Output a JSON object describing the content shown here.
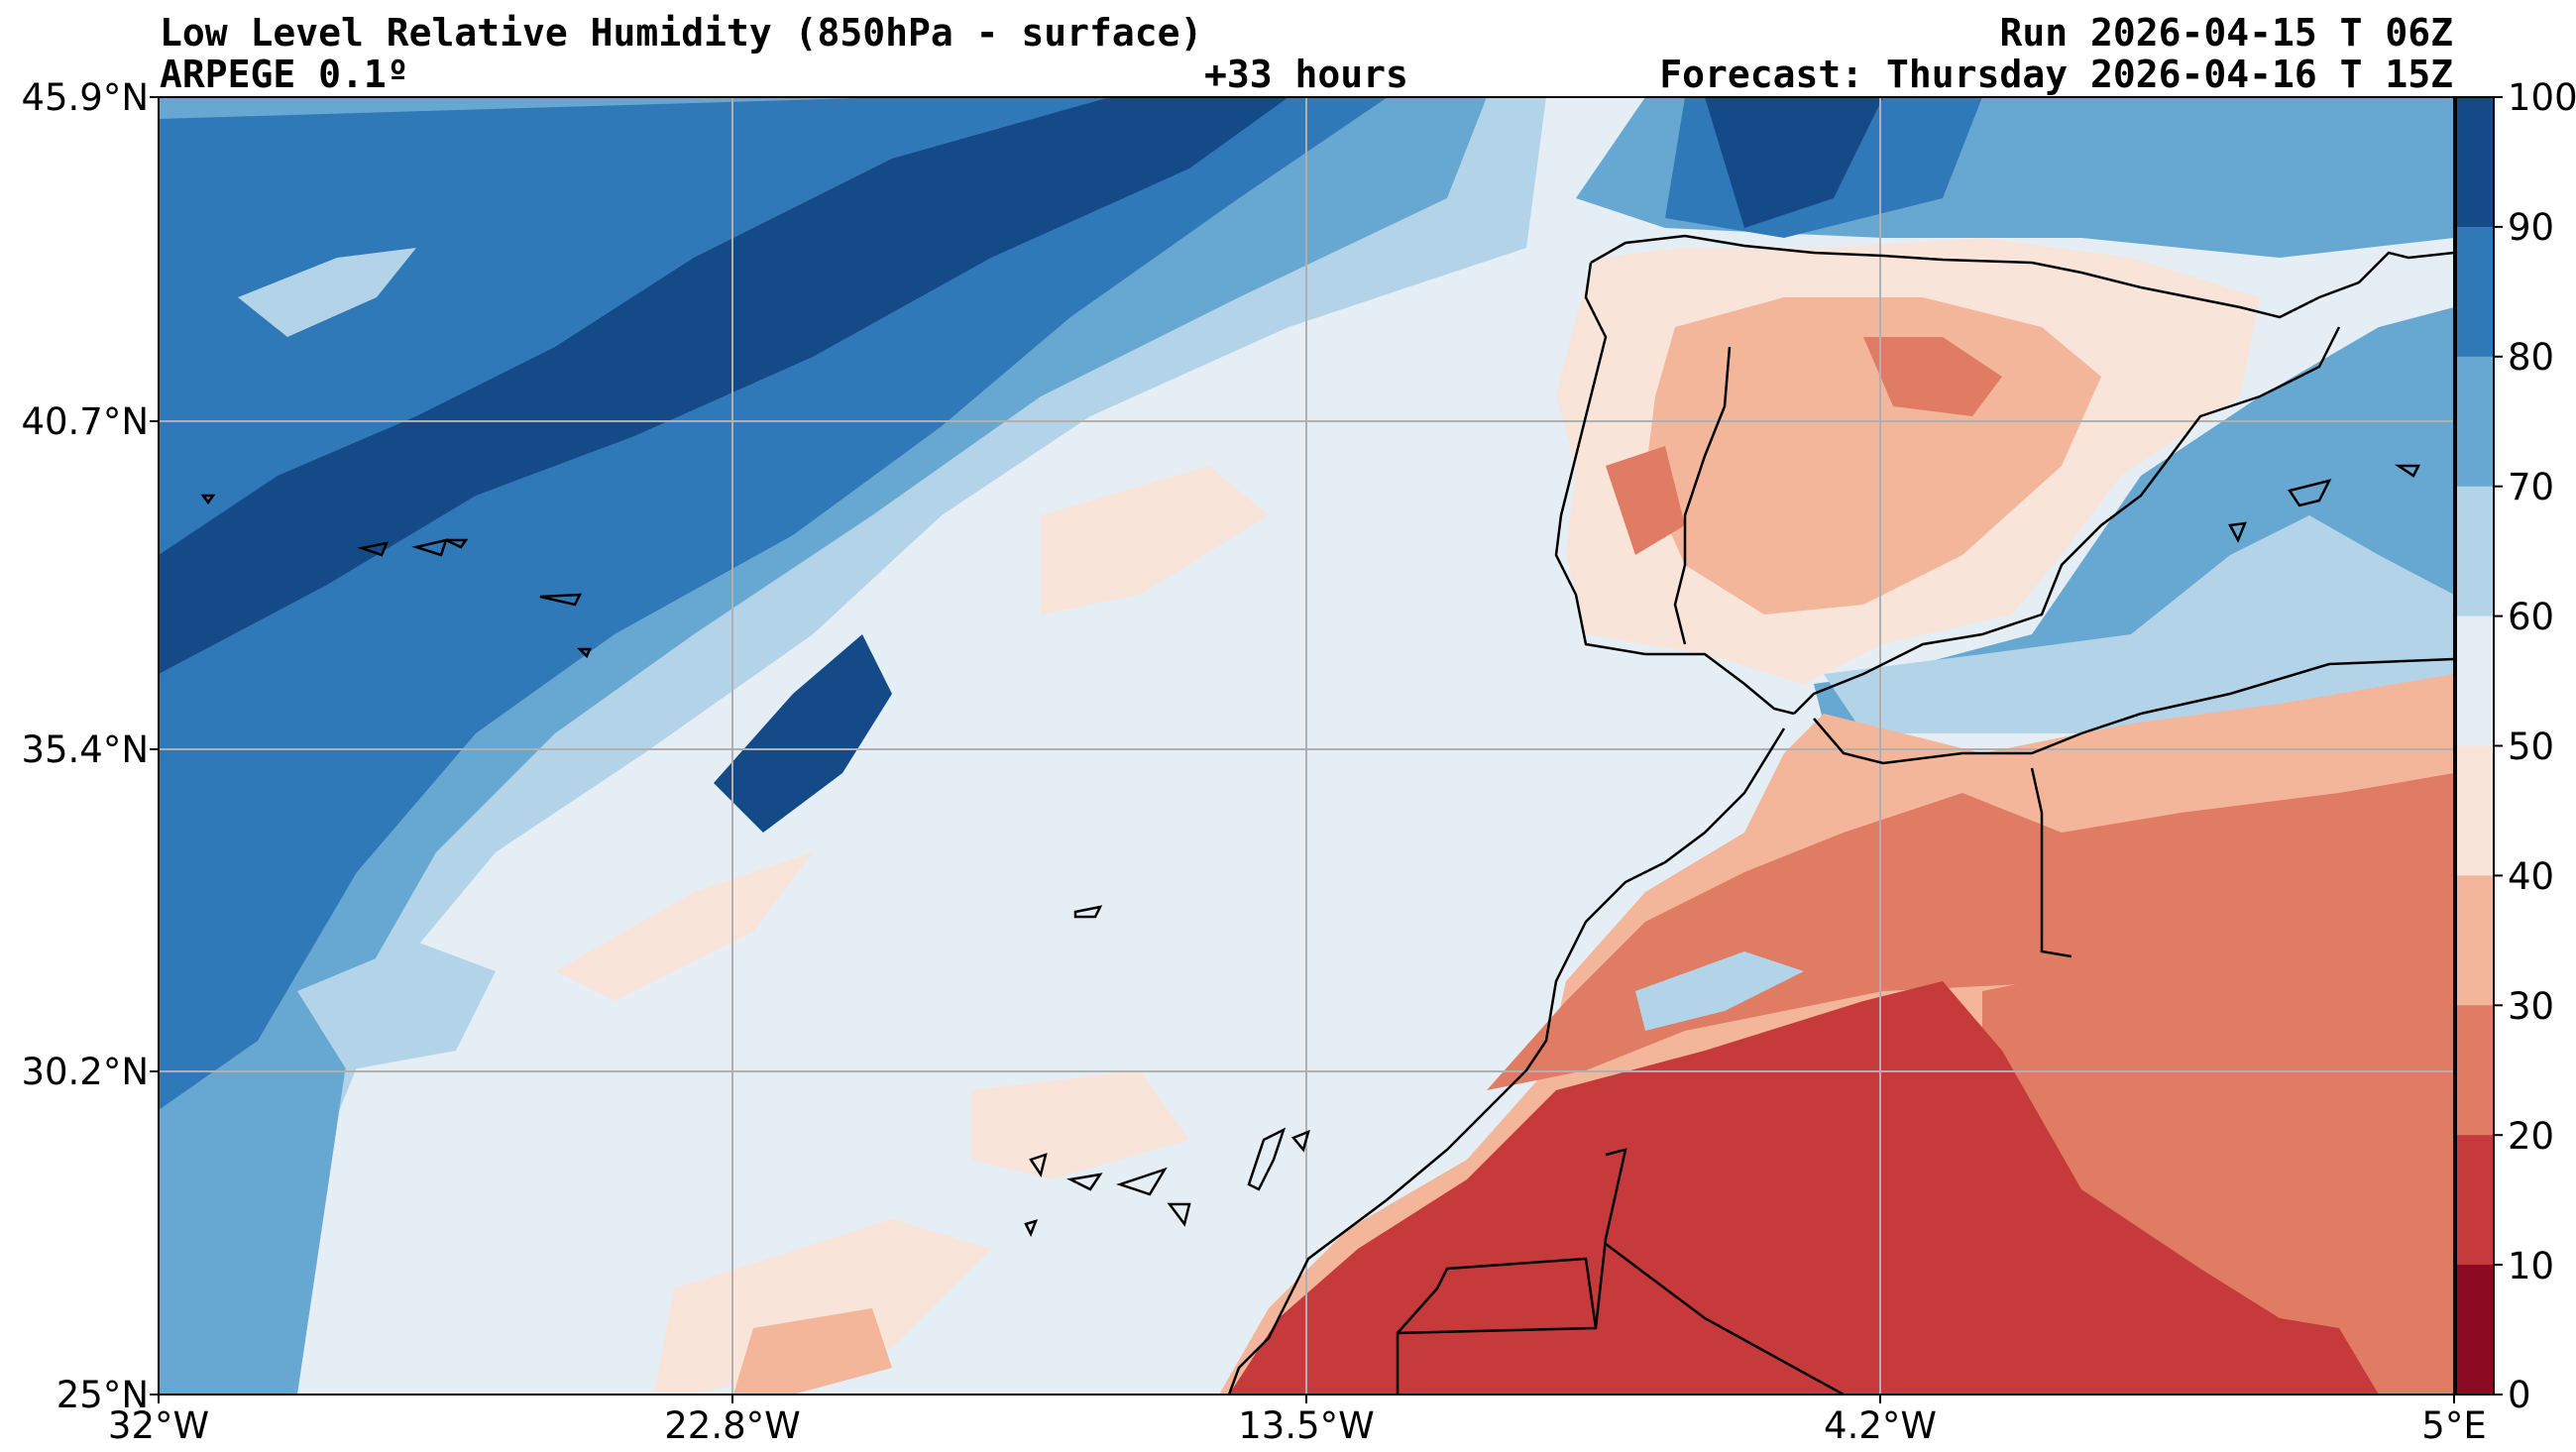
{
  "header": {
    "title": "Low Level Relative Humidity (850hPa - surface)",
    "model": "ARPEGE 0.1º",
    "lead": "+33 hours",
    "run": "Run 2026-04-15 T 06Z",
    "forecast": "Forecast: Thursday 2026-04-16 T 15Z"
  },
  "axes": {
    "x_ticks": [
      "32°W",
      "22.8°W",
      "13.5°W",
      "4.2°W",
      "5°E"
    ],
    "y_ticks": [
      "45.9°N",
      "40.7°N",
      "35.4°N",
      "30.2°N",
      "25°N"
    ],
    "grid": true
  },
  "colorbar": {
    "ticks": [
      "100",
      "90",
      "80",
      "70",
      "60",
      "50",
      "40",
      "30",
      "20",
      "10",
      "0"
    ],
    "levels": [
      {
        "range": "90-100",
        "color": "#144a87"
      },
      {
        "range": "80-90",
        "color": "#3079b8"
      },
      {
        "range": "70-80",
        "color": "#66a8d1"
      },
      {
        "range": "60-70",
        "color": "#b3d4e8"
      },
      {
        "range": "50-60",
        "color": "#e5eef5"
      },
      {
        "range": "40-50",
        "color": "#f9e4da"
      },
      {
        "range": "30-40",
        "color": "#f3b69a"
      },
      {
        "range": "20-30",
        "color": "#e07c64"
      },
      {
        "range": "10-20",
        "color": "#c63a3b"
      },
      {
        "range": "0-10",
        "color": "#8c0b22"
      }
    ]
  }
}
